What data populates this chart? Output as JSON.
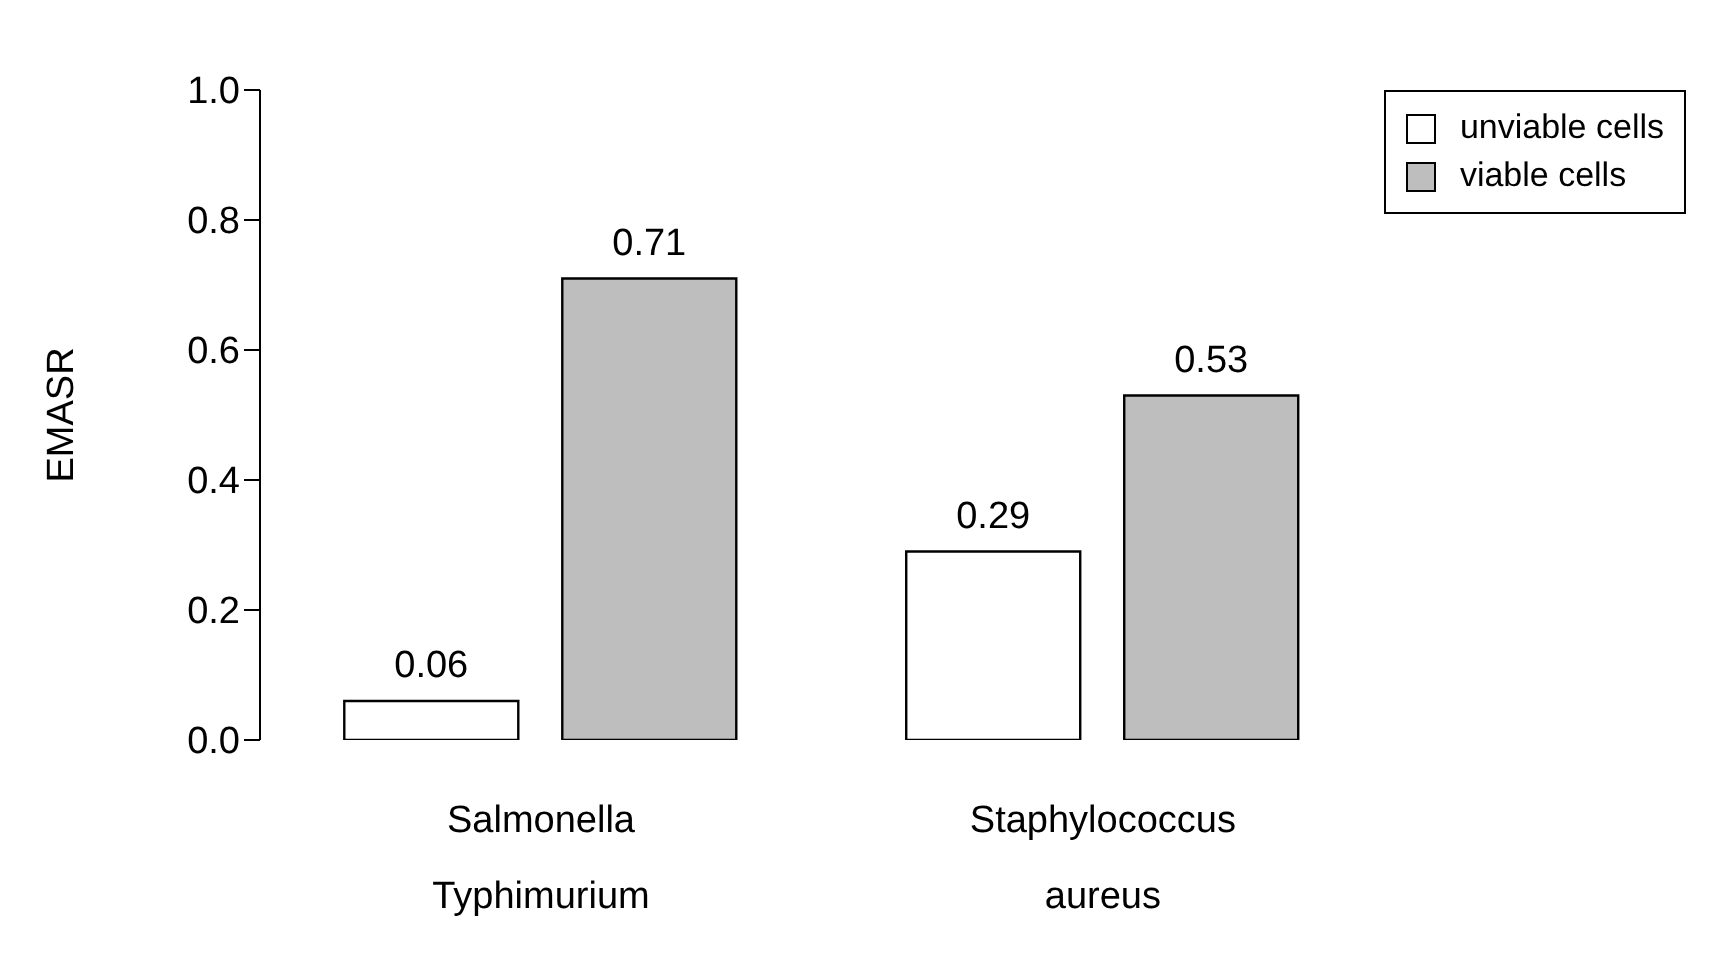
{
  "chart_data": {
    "type": "bar",
    "ylabel": "EMASR",
    "categories": [
      "Salmonella Typhimurium",
      "Staphylococcus aureus"
    ],
    "series": [
      {
        "name": "unviable cells",
        "color": "#ffffff",
        "values": [
          0.06,
          0.29
        ]
      },
      {
        "name": "viable cells",
        "color": "#bebebe",
        "values": [
          0.71,
          0.53
        ]
      }
    ],
    "ylim": [
      0,
      1
    ],
    "yticks": [
      {
        "value": 0,
        "label": "0.0"
      },
      {
        "value": 0.2,
        "label": "0.2"
      },
      {
        "value": 0.4,
        "label": "0.4"
      },
      {
        "value": 0.6,
        "label": "0.6"
      },
      {
        "value": 0.8,
        "label": "0.8"
      },
      {
        "value": 1,
        "label": "1.0"
      }
    ],
    "grid": false,
    "legend": "top right",
    "data_labels": true
  }
}
